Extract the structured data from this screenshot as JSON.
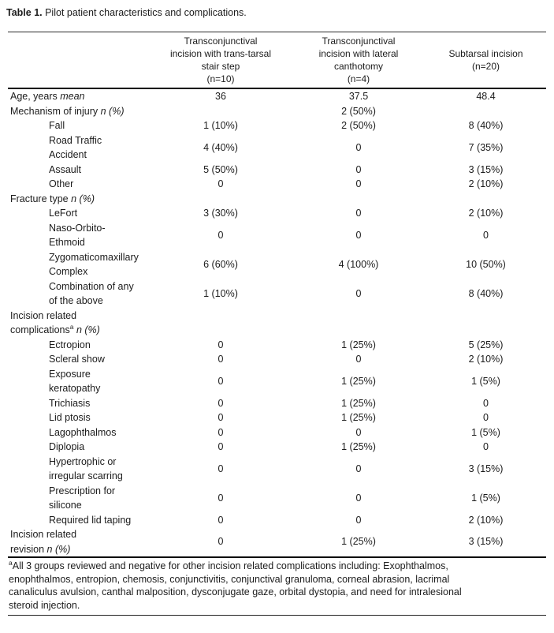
{
  "page": {
    "title_bold": "Table 1.",
    "title_rest": " Pilot patient characteristics and complications."
  },
  "table": {
    "col_headers": [
      "Transconjunctival\nincision with trans-tarsal\nstair step\n(n=10)",
      "Transconjunctival\nincision with lateral\ncanthotomy\n(n=4)",
      "Subtarsal incision\n(n=20)"
    ],
    "rows": [
      {
        "label": "Age, years",
        "suffix": " mean",
        "indent": 0,
        "values": [
          "36",
          "37.5",
          "48.4"
        ]
      },
      {
        "label": "Mechanism of injury",
        "suffix": " n (%)",
        "indent": 0,
        "values": [
          "",
          "2 (50%)",
          ""
        ]
      },
      {
        "label": "Fall",
        "indent": 1,
        "values": [
          "1 (10%)",
          "2 (50%)",
          "8 (40%)"
        ]
      },
      {
        "label": "Road Traffic\nAccident",
        "indent": 1,
        "values": [
          "4 (40%)",
          "0",
          "7 (35%)"
        ]
      },
      {
        "label": "Assault",
        "indent": 1,
        "values": [
          "5 (50%)",
          "0",
          "3 (15%)"
        ]
      },
      {
        "label": "Other",
        "indent": 1,
        "values": [
          "0",
          "0",
          "2 (10%)"
        ]
      },
      {
        "label": "Fracture type",
        "suffix": " n (%)",
        "indent": 0,
        "values": [
          "",
          "",
          ""
        ]
      },
      {
        "label": "LeFort",
        "indent": 1,
        "values": [
          "3 (30%)",
          "0",
          "2 (10%)"
        ]
      },
      {
        "label": "Naso-Orbito-\nEthmoid",
        "indent": 1,
        "values": [
          "0",
          "0",
          "0"
        ]
      },
      {
        "label": "Zygomaticomaxillary\nComplex",
        "indent": 1,
        "values": [
          "6 (60%)",
          "4 (100%)",
          "10 (50%)"
        ]
      },
      {
        "label": "Combination of any\nof the above",
        "indent": 1,
        "values": [
          "1 (10%)",
          "0",
          "8 (40%)"
        ]
      },
      {
        "label": "Incision related\ncomplications",
        "sup": "a",
        "suffix": " n (%)",
        "indent": 0,
        "values": [
          "",
          "",
          ""
        ]
      },
      {
        "label": "Ectropion",
        "indent": 1,
        "values": [
          "0",
          "1 (25%)",
          "5 (25%)"
        ]
      },
      {
        "label": "Scleral show",
        "indent": 1,
        "values": [
          "0",
          "0",
          "2 (10%)"
        ]
      },
      {
        "label": "Exposure\nkeratopathy",
        "indent": 1,
        "values": [
          "0",
          "1 (25%)",
          "1 (5%)"
        ]
      },
      {
        "label": "Trichiasis",
        "indent": 1,
        "values": [
          "0",
          "1 (25%)",
          "0"
        ]
      },
      {
        "label": "Lid ptosis",
        "indent": 1,
        "values": [
          "0",
          "1 (25%)",
          "0"
        ]
      },
      {
        "label": "Lagophthalmos",
        "indent": 1,
        "values": [
          "0",
          "0",
          "1 (5%)"
        ]
      },
      {
        "label": "Diplopia",
        "indent": 1,
        "values": [
          "0",
          "1 (25%)",
          "0"
        ]
      },
      {
        "label": "Hypertrophic or\nirregular scarring",
        "indent": 1,
        "values": [
          "0",
          "0",
          "3 (15%)"
        ]
      },
      {
        "label": "Prescription for\nsilicone",
        "indent": 1,
        "values": [
          "0",
          "0",
          "1 (5%)"
        ]
      },
      {
        "label": "Required lid taping",
        "indent": 1,
        "values": [
          "0",
          "0",
          "2 (10%)"
        ]
      },
      {
        "label": "Incision related\nrevision",
        "suffix": " n (%)",
        "indent": 0,
        "values": [
          "0",
          "1 (25%)",
          "3 (15%)"
        ]
      }
    ],
    "footnote_sup": "a",
    "footnote": "All 3 groups reviewed and negative for other incision related complications including: Exophthalmos,\nenophthalmos, entropion, chemosis, conjunctivitis, conjunctival granuloma, corneal abrasion, lacrimal\ncanaliculus avulsion, canthal malposition, dysconjugate gaze, orbital dystopia, and need for intralesional\nsteroid injection."
  }
}
